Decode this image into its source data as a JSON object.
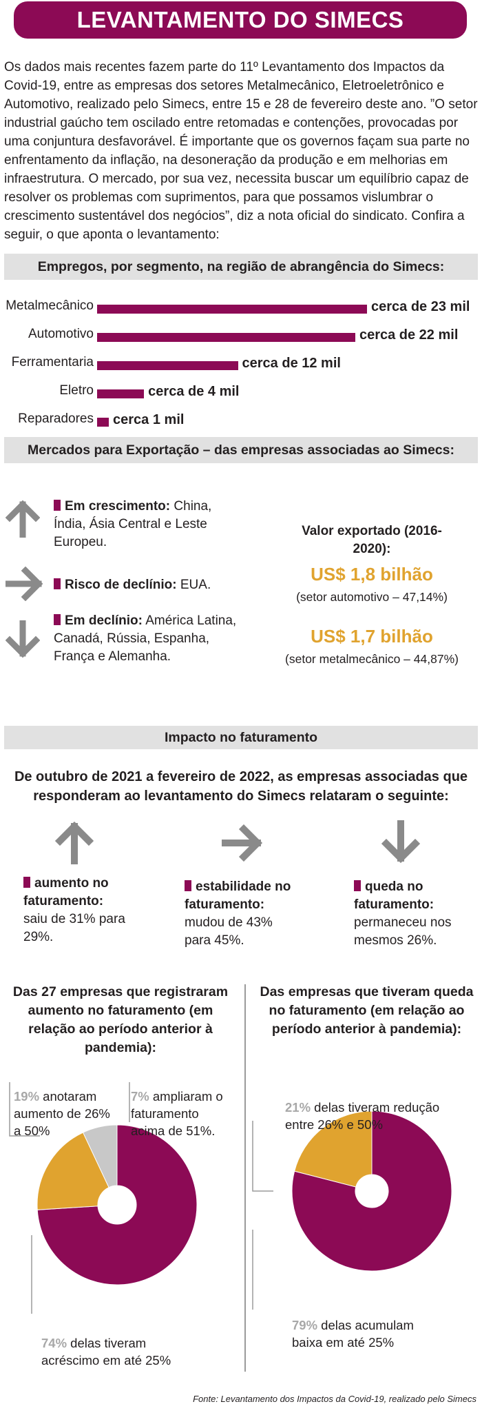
{
  "title": "LEVANTAMENTO DO SIMECS",
  "intro": "Os dados mais recentes fazem parte do 11º Levantamento dos Impactos da Covid-19, entre as empresas dos setores Metalmecânico, Eletroeletrônico e Automotivo, realizado pelo Simecs, entre 15 e 28 de fevereiro deste ano. ”O setor industrial gaúcho tem oscilado entre retomadas e contenções, provocadas por uma conjuntura desfavorável. É importante que os governos façam sua parte no enfrentamento da inflação, na desoneração da produção e em melhorias em infraestrutura. O mercado, por sua vez, necessita buscar um equilíbrio capaz de resolver os problemas com suprimentos, para que possamos vislumbrar o crescimento sustentável dos negócios”, diz a nota oficial do sindicato. Confira a seguir, o que aponta o levantamento:",
  "empregos": {
    "heading": "Empregos, por segmento, na região de abrangência do Simecs:"
  },
  "mercados": {
    "heading": "Mercados para Exportação – das empresas associadas ao Simecs:",
    "crescimento_label": "Em crescimento:",
    "crescimento_text": "China, Índia, Ásia Central e Leste Europeu.",
    "risco_label": "Risco de declínio:",
    "risco_text": "EUA.",
    "declinio_label": "Em declínio:",
    "declinio_text": "América Latina, Canadá, Rússia, Espanha, França e Alemanha.",
    "valor_title": "Valor exportado (2016-2020):",
    "valor1": "US$ 1,8 bilhão",
    "valor1_sub": "(setor automotivo – 47,14%)",
    "valor2": "US$ 1,7 bilhão",
    "valor2_sub": "(setor metalmecânico – 44,87%)",
    "accent_color": "#e0a32f"
  },
  "faturamento": {
    "heading": "Impacto no faturamento",
    "subtitle": "De outubro de 2021 a fevereiro de 2022, as empresas associadas que responderam ao levantamento do Simecs relataram o seguinte:",
    "aumento_label": "aumento no faturamento:",
    "aumento_text": "saiu de 31% para 29%.",
    "estabilidade_label": "estabilidade no faturamento:",
    "estabilidade_text": "mudou de 43% para 45%.",
    "queda_label": "queda no faturamento:",
    "queda_text": "permaneceu nos mesmos 26%."
  },
  "footer": "Fonte: Levantamento dos Impactos da Covid-19, realizado pelo Simecs",
  "colors": {
    "brand": "#8c0a55",
    "accent": "#e0a32f",
    "gray": "#c8c8c8"
  },
  "chart_data": [
    {
      "type": "bar",
      "orientation": "horizontal",
      "title": "Empregos, por segmento, na região de abrangência do Simecs:",
      "categories": [
        "Metalmecânico",
        "Automotivo",
        "Ferramentaria",
        "Eletro",
        "Reparadores"
      ],
      "values": [
        23000,
        22000,
        12000,
        4000,
        1000
      ],
      "data_labels": [
        "cerca de 23 mil",
        "cerca de 22 mil",
        "cerca de 12 mil",
        "cerca de 4 mil",
        "cerca 1 mil"
      ],
      "xlim": [
        0,
        23000
      ]
    },
    {
      "type": "pie",
      "donut": true,
      "title": "Das 27 empresas que registraram aumento no faturamento (em relação ao período anterior à pandemia):",
      "slices": [
        {
          "label": "74%",
          "value": 74,
          "text": "delas tiveram acréscimo em até 25%",
          "color": "#8c0a55"
        },
        {
          "label": "19%",
          "value": 19,
          "text": "anotaram aumento de 26% a 50%",
          "color": "#e0a32f"
        },
        {
          "label": "7%",
          "value": 7,
          "text": "ampliaram o faturamento acima de 51%.",
          "color": "#c8c8c8"
        }
      ]
    },
    {
      "type": "pie",
      "donut": true,
      "title": "Das empresas que tiveram queda no faturamento (em relação ao período anterior à pandemia):",
      "slices": [
        {
          "label": "79%",
          "value": 79,
          "text": "delas acumulam baixa em até 25%",
          "color": "#8c0a55"
        },
        {
          "label": "21%",
          "value": 21,
          "text": "delas tiveram redução entre 26% e 50%",
          "color": "#e0a32f"
        }
      ]
    }
  ]
}
